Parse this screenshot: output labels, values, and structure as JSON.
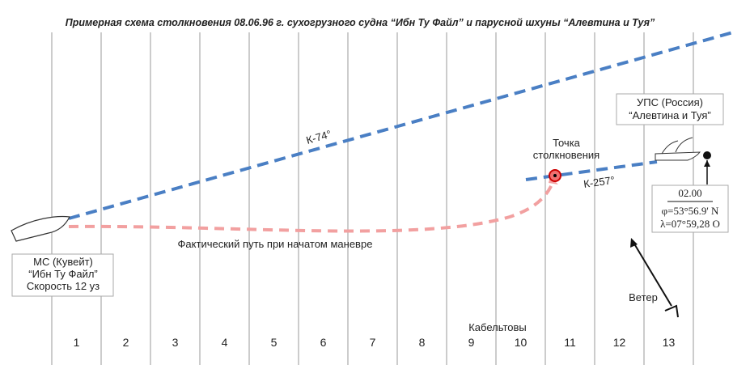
{
  "title": "Примерная схема столкновения 08.06.96 г. сухогрузного судна “Ибн Ту Файл” и парусной шхуны “Алевтина и Туя”",
  "course_1": "К-74°",
  "course_2": "К-257°",
  "collision_point": [
    "Точка",
    "столкновения"
  ],
  "actual_path": "Фактический путь при начатом маневре",
  "ship_1": [
    "МС (Кувейт)",
    "“Ибн Ту Файл”",
    "Скорость 12 уз"
  ],
  "ship_2": [
    "УПС (Россия)",
    "“Алевтина и Туя”"
  ],
  "position": {
    "time": "02.00",
    "lat": "φ=53°56.9' N",
    "lon": "λ=07°59,28 O"
  },
  "wind": "Ветер",
  "axis_label": "Кабельтовы",
  "columns": [
    "1",
    "2",
    "3",
    "4",
    "5",
    "6",
    "7",
    "8",
    "9",
    "10",
    "11",
    "12",
    "13"
  ]
}
